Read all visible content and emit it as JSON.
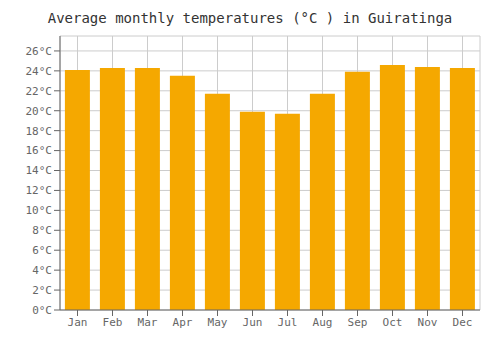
{
  "chart_data": {
    "type": "bar",
    "title": "Average monthly temperatures (°C ) in Guiratinga",
    "categories": [
      "Jan",
      "Feb",
      "Mar",
      "Apr",
      "May",
      "Jun",
      "Jul",
      "Aug",
      "Sep",
      "Oct",
      "Nov",
      "Dec"
    ],
    "values": [
      24.1,
      24.3,
      24.3,
      23.5,
      21.7,
      19.9,
      19.7,
      21.7,
      23.9,
      24.6,
      24.4,
      24.3
    ],
    "color": "#F5A800",
    "ylim": [
      0,
      27.5
    ],
    "yticks": [
      {
        "value": 0,
        "label": "0°C"
      },
      {
        "value": 2,
        "label": "2°C"
      },
      {
        "value": 4,
        "label": "4°C"
      },
      {
        "value": 6,
        "label": "6°C"
      },
      {
        "value": 8,
        "label": "8°C"
      },
      {
        "value": 10,
        "label": "10°C"
      },
      {
        "value": 12,
        "label": "12°C"
      },
      {
        "value": 14,
        "label": "14°C"
      },
      {
        "value": 16,
        "label": "16°C"
      },
      {
        "value": 18,
        "label": "18°C"
      },
      {
        "value": 20,
        "label": "20°C"
      },
      {
        "value": 22,
        "label": "22°C"
      },
      {
        "value": 24,
        "label": "24°C"
      },
      {
        "value": 26,
        "label": "26°C"
      }
    ],
    "grid": true
  }
}
